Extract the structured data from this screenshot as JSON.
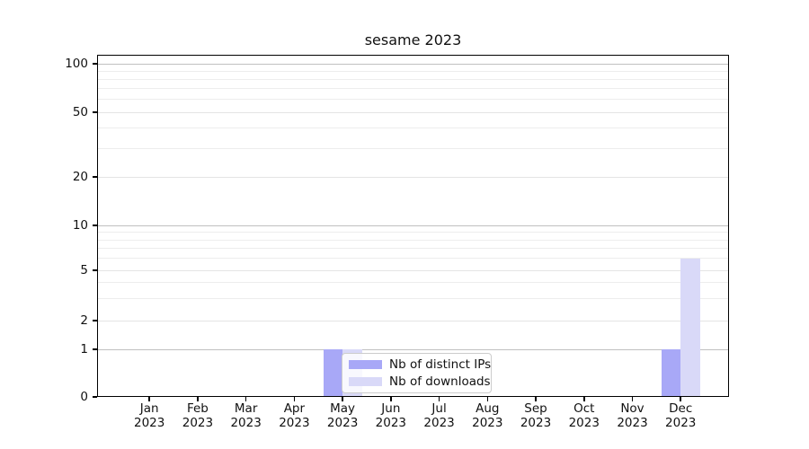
{
  "title": "sesame 2023",
  "chart_data": {
    "type": "bar",
    "title": "sesame 2023",
    "categories": [
      "Jan 2023",
      "Feb 2023",
      "Mar 2023",
      "Apr 2023",
      "May 2023",
      "Jun 2023",
      "Jul 2023",
      "Aug 2023",
      "Sep 2023",
      "Oct 2023",
      "Nov 2023",
      "Dec 2023"
    ],
    "series": [
      {
        "name": "Nb of distinct IPs",
        "color": "#a8a8f7",
        "values": [
          0,
          0,
          0,
          0,
          1,
          0,
          0,
          0,
          0,
          0,
          0,
          1
        ]
      },
      {
        "name": "Nb of downloads",
        "color": "#d9d9f8",
        "values": [
          0,
          0,
          0,
          0,
          1,
          0,
          0,
          0,
          0,
          0,
          0,
          6
        ]
      }
    ],
    "xlabel": "",
    "ylabel": "",
    "yscale": "symlog",
    "y_ticks": [
      0,
      1,
      2,
      5,
      10,
      20,
      50,
      100
    ],
    "y_minor_ticks": [
      3,
      4,
      6,
      7,
      8,
      9,
      30,
      40,
      60,
      70,
      80,
      90
    ],
    "ylim": [
      0,
      113
    ],
    "grid": "horizontal major and minor",
    "legend_position": "lower center, inside plot"
  }
}
